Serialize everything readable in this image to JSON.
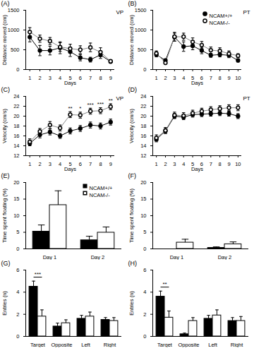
{
  "chart_data": [
    {
      "type": "line",
      "title": "(A)",
      "x_label": "Days",
      "y_label": "Distance moved (cm)",
      "x": [
        1,
        2,
        3,
        4,
        5,
        6,
        7,
        8,
        9
      ],
      "xlim": [
        0.6,
        9.4
      ],
      "xticks": [
        1,
        2,
        3,
        4,
        5,
        6,
        7,
        8,
        9
      ],
      "ylim": [
        0,
        1500
      ],
      "yticks": [
        0,
        500,
        1000,
        1500
      ],
      "annotations": [
        {
          "text": "VP"
        }
      ],
      "series": [
        {
          "name": "NCAM+/+",
          "color": "#000000",
          "marker": "circle",
          "values": [
            820,
            480,
            480,
            550,
            450,
            300,
            250,
            370,
            200
          ],
          "errors": [
            120,
            130,
            110,
            150,
            120,
            80,
            60,
            90,
            40
          ]
        },
        {
          "name": "NCAM-/-",
          "color": "#ffffff",
          "marker": "circle",
          "values": [
            950,
            780,
            720,
            570,
            530,
            500,
            560,
            440,
            210
          ],
          "errors": [
            110,
            90,
            90,
            110,
            110,
            100,
            110,
            110,
            40
          ]
        }
      ]
    },
    {
      "type": "line",
      "title": "(B)",
      "x_label": "Days",
      "y_label": "Distance moved (cm)",
      "legend": "top-right",
      "x": [
        1,
        2,
        3,
        4,
        5,
        6,
        7,
        8,
        9,
        10
      ],
      "xlim": [
        0.6,
        10.4
      ],
      "xticks": [
        1,
        2,
        3,
        4,
        5,
        6,
        7,
        8,
        9,
        10
      ],
      "ylim": [
        0,
        1500
      ],
      "yticks": [
        0,
        500,
        1000,
        1500
      ],
      "annotations": [
        {
          "text": "PT"
        }
      ],
      "series": [
        {
          "name": "NCAM+/+",
          "color": "#000000",
          "marker": "circle",
          "values": [
            380,
            230,
            820,
            580,
            600,
            480,
            360,
            380,
            360,
            230
          ],
          "errors": [
            60,
            40,
            100,
            120,
            100,
            80,
            50,
            60,
            60,
            40
          ]
        },
        {
          "name": "NCAM-/-",
          "color": "#ffffff",
          "marker": "circle",
          "values": [
            410,
            170,
            830,
            830,
            700,
            620,
            490,
            470,
            400,
            350
          ],
          "errors": [
            60,
            30,
            110,
            90,
            100,
            90,
            80,
            80,
            70,
            50
          ]
        }
      ]
    },
    {
      "type": "line",
      "title": "(C)",
      "x_label": "Days",
      "y_label": "Velocity (cm/s)",
      "x": [
        1,
        2,
        3,
        4,
        5,
        6,
        7,
        8,
        9
      ],
      "xlim": [
        0.6,
        9.4
      ],
      "xticks": [
        1,
        2,
        3,
        4,
        5,
        6,
        7,
        8,
        9
      ],
      "ylim": [
        12,
        24
      ],
      "yticks": [
        12,
        14,
        16,
        18,
        20,
        22,
        24
      ],
      "annotations": [
        {
          "text": "VP"
        },
        {
          "x": 5,
          "text": "**"
        },
        {
          "x": 6,
          "text": "*"
        },
        {
          "x": 7,
          "text": "***"
        },
        {
          "x": 8,
          "text": "***"
        },
        {
          "x": 9,
          "text": "**"
        }
      ],
      "series": [
        {
          "name": "NCAM+/+",
          "color": "#000000",
          "marker": "circle",
          "values": [
            14.5,
            16.2,
            16.8,
            16.0,
            17.0,
            17.5,
            18.2,
            18.0,
            18.8
          ],
          "errors": [
            0.5,
            0.6,
            0.6,
            0.5,
            0.6,
            0.6,
            0.6,
            0.6,
            0.6
          ]
        },
        {
          "name": "NCAM-/-",
          "color": "#ffffff",
          "marker": "circle",
          "values": [
            14.8,
            16.9,
            18.2,
            17.6,
            20.3,
            20.2,
            21.0,
            21.1,
            21.9
          ],
          "errors": [
            0.6,
            0.6,
            0.7,
            0.6,
            0.6,
            0.6,
            0.6,
            0.6,
            0.6
          ]
        }
      ]
    },
    {
      "type": "line",
      "title": "(D)",
      "x_label": "Days",
      "y_label": "Velocity (cm/s)",
      "x": [
        1,
        2,
        3,
        4,
        5,
        6,
        7,
        8,
        9,
        10
      ],
      "xlim": [
        0.6,
        10.4
      ],
      "xticks": [
        1,
        2,
        3,
        4,
        5,
        6,
        7,
        8,
        9,
        10
      ],
      "ylim": [
        12,
        24
      ],
      "yticks": [
        12,
        14,
        16,
        18,
        20,
        22,
        24
      ],
      "annotations": [
        {
          "text": "PT"
        }
      ],
      "series": [
        {
          "name": "NCAM+/+",
          "color": "#000000",
          "marker": "circle",
          "values": [
            15.3,
            17.0,
            20.0,
            19.8,
            20.3,
            20.4,
            20.5,
            20.6,
            20.5,
            20.0
          ],
          "errors": [
            0.5,
            0.5,
            0.5,
            0.5,
            0.5,
            0.5,
            0.5,
            0.5,
            0.5,
            0.5
          ]
        },
        {
          "name": "NCAM-/-",
          "color": "#ffffff",
          "marker": "circle",
          "values": [
            15.6,
            17.1,
            20.2,
            20.1,
            20.6,
            21.0,
            21.3,
            21.5,
            21.7,
            21.7
          ],
          "errors": [
            0.6,
            0.6,
            0.6,
            0.6,
            0.6,
            0.6,
            0.6,
            0.6,
            0.6,
            0.6
          ]
        }
      ]
    },
    {
      "type": "bar",
      "title": "(E)",
      "y_label": "Time spent floating (%)",
      "legend": "top-right",
      "categories": [
        "Day 1",
        "Day 2"
      ],
      "ylim": [
        0,
        20
      ],
      "yticks": [
        0,
        5,
        10,
        15,
        20
      ],
      "series": [
        {
          "name": "NCAM+/+",
          "color": "#000000",
          "marker": "square",
          "values": [
            5.2,
            2.6
          ],
          "errors": [
            2.0,
            1.2
          ]
        },
        {
          "name": "NCAM-/-",
          "color": "#ffffff",
          "marker": "square",
          "values": [
            13.2,
            4.9
          ],
          "errors": [
            4.3,
            1.7
          ]
        }
      ]
    },
    {
      "type": "bar",
      "title": "(F)",
      "y_label": "Time spent floating (%)",
      "categories": [
        "Day 1",
        "Day 2"
      ],
      "ylim": [
        0,
        20
      ],
      "yticks": [
        0,
        5,
        10,
        15,
        20
      ],
      "series": [
        {
          "name": "NCAM+/+",
          "color": "#000000",
          "values": [
            0,
            0.3
          ],
          "errors": [
            0,
            0.3
          ]
        },
        {
          "name": "NCAM-/-",
          "color": "#ffffff",
          "values": [
            1.9,
            1.4
          ],
          "errors": [
            1.0,
            0.7
          ]
        }
      ]
    },
    {
      "type": "bar",
      "title": "(G)",
      "y_label": "Entries (n)",
      "categories": [
        "Target",
        "Opposite",
        "Left",
        "Right"
      ],
      "ylim": [
        0,
        6
      ],
      "yticks": [
        0,
        2,
        4,
        6
      ],
      "annotations": [
        {
          "category": "Target",
          "text": "***"
        }
      ],
      "series": [
        {
          "name": "NCAM+/+",
          "color": "#000000",
          "values": [
            4.5,
            0.9,
            1.6,
            1.5
          ],
          "errors": [
            0.5,
            0.3,
            0.3,
            0.2
          ]
        },
        {
          "name": "NCAM-/-",
          "color": "#ffffff",
          "values": [
            1.8,
            1.2,
            1.8,
            1.4
          ],
          "errors": [
            0.6,
            0.3,
            0.4,
            0.3
          ]
        }
      ]
    },
    {
      "type": "bar",
      "title": "(H)",
      "y_label": "Entries (n)",
      "categories": [
        "Target",
        "Opposite",
        "Left",
        "Right"
      ],
      "ylim": [
        0,
        6
      ],
      "yticks": [
        0,
        2,
        4,
        6
      ],
      "annotations": [
        {
          "category": "Target",
          "text": "**"
        }
      ],
      "series": [
        {
          "name": "NCAM+/+",
          "color": "#000000",
          "values": [
            3.6,
            0.2,
            1.6,
            1.4
          ],
          "errors": [
            0.5,
            0.1,
            0.3,
            0.3
          ]
        },
        {
          "name": "NCAM-/-",
          "color": "#ffffff",
          "values": [
            1.7,
            1.4,
            1.9,
            1.4
          ],
          "errors": [
            0.6,
            0.3,
            0.5,
            0.4
          ]
        }
      ]
    }
  ]
}
